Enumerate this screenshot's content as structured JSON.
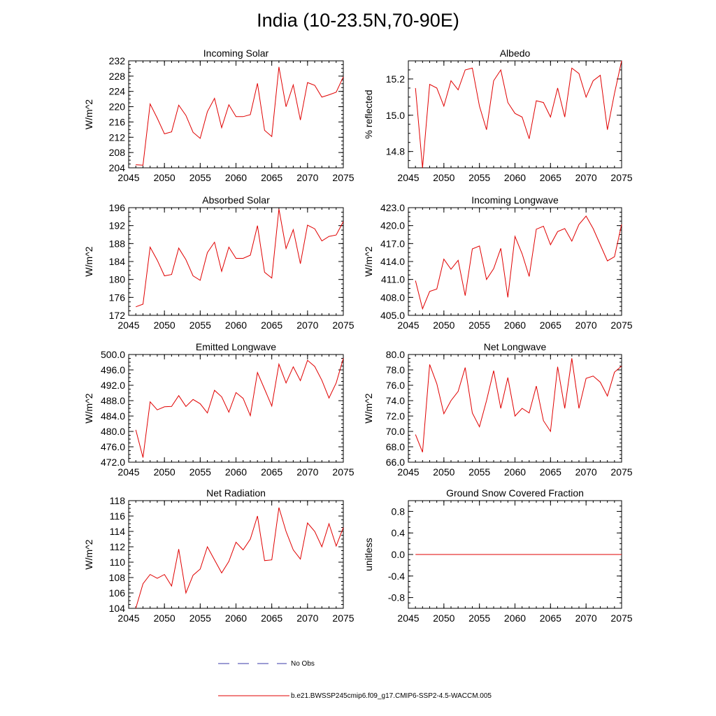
{
  "figure_title": "India (10-23.5N,70-90E)",
  "legend": {
    "obs_label": "No Obs",
    "obs_color": "#3a3aa8",
    "model_label": "b.e21.BWSSP245cmip6.f09_g17.CMIP6-SSP2-4.5-WACCM.005",
    "model_color": "#e00000"
  },
  "chart_data": [
    {
      "type": "line",
      "title": "Incoming Solar",
      "xlabel": "",
      "ylabel": "W/m^2",
      "xlim": [
        2045,
        2075
      ],
      "ylim": [
        204,
        232
      ],
      "xticks": [
        2045,
        2050,
        2055,
        2060,
        2065,
        2070,
        2075
      ],
      "xtick_labels": [
        "2045",
        "2050",
        "2055",
        "2060",
        "2065",
        "2070",
        "2075"
      ],
      "yticks": [
        204,
        208,
        212,
        216,
        220,
        224,
        228,
        232
      ],
      "ytick_labels": [
        "204",
        "208",
        "212",
        "216",
        "220",
        "224",
        "228",
        "232"
      ],
      "series": [
        {
          "name": "b.e21.BWSSP245cmip6.f09_g17.CMIP6-SSP2-4.5-WACCM.005",
          "x": [
            2046,
            2047,
            2048,
            2049,
            2050,
            2051,
            2052,
            2053,
            2054,
            2055,
            2056,
            2057,
            2058,
            2059,
            2060,
            2061,
            2062,
            2063,
            2064,
            2065,
            2066,
            2067,
            2068,
            2069,
            2070,
            2071,
            2072,
            2073,
            2074,
            2075
          ],
          "values": [
            204.8,
            204.7,
            220.7,
            217.0,
            212.9,
            213.4,
            220.4,
            217.7,
            213.3,
            211.7,
            218.7,
            222.2,
            214.5,
            220.5,
            217.4,
            217.4,
            217.9,
            226.1,
            213.8,
            212.2,
            230.4,
            220.0,
            225.7,
            216.5,
            226.3,
            225.6,
            222.5,
            223.1,
            223.8,
            227.8
          ]
        }
      ]
    },
    {
      "type": "line",
      "title": "Albedo",
      "xlabel": "",
      "ylabel": "% reflected",
      "xlim": [
        2045,
        2075
      ],
      "ylim": [
        14.71,
        15.3
      ],
      "xticks": [
        2045,
        2050,
        2055,
        2060,
        2065,
        2070,
        2075
      ],
      "xtick_labels": [
        "2045",
        "2050",
        "2055",
        "2060",
        "2065",
        "2070",
        "2075"
      ],
      "yticks": [
        14.8,
        15.0,
        15.2
      ],
      "ytick_labels": [
        "14.8",
        "15.0",
        "15.2"
      ],
      "series": [
        {
          "name": "b.e21.BWSSP245cmip6.f09_g17.CMIP6-SSP2-4.5-WACCM.005",
          "x": [
            2046,
            2047,
            2048,
            2049,
            2050,
            2051,
            2052,
            2053,
            2054,
            2055,
            2056,
            2057,
            2058,
            2059,
            2060,
            2061,
            2062,
            2063,
            2064,
            2065,
            2066,
            2067,
            2068,
            2069,
            2070,
            2071,
            2072,
            2073,
            2074,
            2075
          ],
          "values": [
            15.15,
            14.71,
            15.17,
            15.15,
            15.05,
            15.19,
            15.14,
            15.25,
            15.26,
            15.05,
            14.92,
            15.19,
            15.25,
            15.07,
            15.01,
            14.99,
            14.87,
            15.08,
            15.07,
            14.99,
            15.15,
            14.99,
            15.26,
            15.23,
            15.1,
            15.19,
            15.22,
            14.92,
            15.12,
            15.3
          ]
        }
      ]
    },
    {
      "type": "line",
      "title": "Absorbed Solar",
      "xlabel": "",
      "ylabel": "W/m^2",
      "xlim": [
        2045,
        2075
      ],
      "ylim": [
        172,
        196
      ],
      "xticks": [
        2045,
        2050,
        2055,
        2060,
        2065,
        2070,
        2075
      ],
      "xtick_labels": [
        "2045",
        "2050",
        "2055",
        "2060",
        "2065",
        "2070",
        "2075"
      ],
      "yticks": [
        172,
        176,
        180,
        184,
        188,
        192,
        196
      ],
      "ytick_labels": [
        "172",
        "176",
        "180",
        "184",
        "188",
        "192",
        "196"
      ],
      "series": [
        {
          "name": "b.e21.BWSSP245cmip6.f09_g17.CMIP6-SSP2-4.5-WACCM.005",
          "x": [
            2046,
            2047,
            2048,
            2049,
            2050,
            2051,
            2052,
            2053,
            2054,
            2055,
            2056,
            2057,
            2058,
            2059,
            2060,
            2061,
            2062,
            2063,
            2064,
            2065,
            2066,
            2067,
            2068,
            2069,
            2070,
            2071,
            2072,
            2073,
            2074,
            2075
          ],
          "values": [
            173.9,
            174.5,
            187.2,
            184.3,
            180.8,
            181.1,
            187.0,
            184.4,
            180.8,
            179.8,
            186.0,
            188.3,
            181.8,
            187.2,
            184.7,
            184.7,
            185.4,
            192.0,
            181.6,
            180.3,
            195.7,
            186.9,
            191.1,
            183.5,
            192.1,
            191.3,
            188.6,
            189.6,
            189.9,
            192.9
          ]
        }
      ]
    },
    {
      "type": "line",
      "title": "Incoming Longwave",
      "xlabel": "",
      "ylabel": "W/m^2",
      "xlim": [
        2045,
        2075
      ],
      "ylim": [
        405,
        423
      ],
      "xticks": [
        2045,
        2050,
        2055,
        2060,
        2065,
        2070,
        2075
      ],
      "xtick_labels": [
        "2045",
        "2050",
        "2055",
        "2060",
        "2065",
        "2070",
        "2075"
      ],
      "yticks": [
        405,
        408,
        411,
        414,
        417,
        420,
        423
      ],
      "ytick_labels": [
        "405.0",
        "408.0",
        "411.0",
        "414.0",
        "417.0",
        "420.0",
        "423.0"
      ],
      "series": [
        {
          "name": "b.e21.BWSSP245cmip6.f09_g17.CMIP6-SSP2-4.5-WACCM.005",
          "x": [
            2046,
            2047,
            2048,
            2049,
            2050,
            2051,
            2052,
            2053,
            2054,
            2055,
            2056,
            2057,
            2058,
            2059,
            2060,
            2061,
            2062,
            2063,
            2064,
            2065,
            2066,
            2067,
            2068,
            2069,
            2070,
            2071,
            2072,
            2073,
            2074,
            2075
          ],
          "values": [
            410.8,
            406.1,
            409.0,
            409.4,
            414.4,
            412.7,
            414.2,
            408.3,
            416.1,
            416.6,
            411.0,
            412.8,
            416.2,
            408.0,
            418.2,
            415.3,
            411.5,
            419.4,
            419.9,
            416.8,
            419.0,
            419.5,
            417.4,
            420.2,
            421.6,
            419.5,
            416.8,
            414.1,
            414.8,
            420.2
          ]
        }
      ]
    },
    {
      "type": "line",
      "title": "Emitted Longwave",
      "xlabel": "",
      "ylabel": "W/m^2",
      "xlim": [
        2045,
        2075
      ],
      "ylim": [
        472,
        500
      ],
      "xticks": [
        2045,
        2050,
        2055,
        2060,
        2065,
        2070,
        2075
      ],
      "xtick_labels": [
        "2045",
        "2050",
        "2055",
        "2060",
        "2065",
        "2070",
        "2075"
      ],
      "yticks": [
        472,
        476,
        480,
        484,
        488,
        492,
        496,
        500
      ],
      "ytick_labels": [
        "472.0",
        "476.0",
        "480.0",
        "484.0",
        "488.0",
        "492.0",
        "496.0",
        "500.0"
      ],
      "series": [
        {
          "name": "b.e21.BWSSP245cmip6.f09_g17.CMIP6-SSP2-4.5-WACCM.005",
          "x": [
            2046,
            2047,
            2048,
            2049,
            2050,
            2051,
            2052,
            2053,
            2054,
            2055,
            2056,
            2057,
            2058,
            2059,
            2060,
            2061,
            2062,
            2063,
            2064,
            2065,
            2066,
            2067,
            2068,
            2069,
            2070,
            2071,
            2072,
            2073,
            2074,
            2075
          ],
          "values": [
            480.4,
            473.2,
            487.7,
            485.6,
            486.4,
            486.5,
            489.3,
            486.5,
            488.3,
            487.2,
            484.8,
            490.7,
            489.0,
            485.0,
            490.1,
            488.6,
            484.1,
            495.3,
            491.0,
            486.6,
            497.5,
            492.6,
            496.8,
            493.2,
            498.5,
            496.9,
            493.3,
            488.7,
            492.6,
            499.0
          ]
        }
      ]
    },
    {
      "type": "line",
      "title": "Net Longwave",
      "xlabel": "",
      "ylabel": "W/m^2",
      "xlim": [
        2045,
        2075
      ],
      "ylim": [
        66,
        80
      ],
      "xticks": [
        2045,
        2050,
        2055,
        2060,
        2065,
        2070,
        2075
      ],
      "xtick_labels": [
        "2045",
        "2050",
        "2055",
        "2060",
        "2065",
        "2070",
        "2075"
      ],
      "yticks": [
        66,
        68,
        70,
        72,
        74,
        76,
        78,
        80
      ],
      "ytick_labels": [
        "66.0",
        "68.0",
        "70.0",
        "72.0",
        "74.0",
        "76.0",
        "78.0",
        "80.0"
      ],
      "series": [
        {
          "name": "b.e21.BWSSP245cmip6.f09_g17.CMIP6-SSP2-4.5-WACCM.005",
          "x": [
            2046,
            2047,
            2048,
            2049,
            2050,
            2051,
            2052,
            2053,
            2054,
            2055,
            2056,
            2057,
            2058,
            2059,
            2060,
            2061,
            2062,
            2063,
            2064,
            2065,
            2066,
            2067,
            2068,
            2069,
            2070,
            2071,
            2072,
            2073,
            2074,
            2075
          ],
          "values": [
            69.6,
            67.3,
            78.7,
            76.2,
            72.3,
            74.0,
            75.2,
            78.3,
            72.4,
            70.6,
            74.0,
            77.9,
            73.0,
            77.0,
            72.0,
            73.0,
            72.4,
            75.9,
            71.4,
            70.0,
            78.4,
            73.0,
            79.5,
            73.0,
            76.9,
            77.2,
            76.4,
            74.6,
            77.7,
            78.5
          ]
        }
      ]
    },
    {
      "type": "line",
      "title": "Net Radiation",
      "xlabel": "",
      "ylabel": "W/m^2",
      "xlim": [
        2045,
        2075
      ],
      "ylim": [
        104,
        118
      ],
      "xticks": [
        2045,
        2050,
        2055,
        2060,
        2065,
        2070,
        2075
      ],
      "xtick_labels": [
        "2045",
        "2050",
        "2055",
        "2060",
        "2065",
        "2070",
        "2075"
      ],
      "yticks": [
        104,
        106,
        108,
        110,
        112,
        114,
        116,
        118
      ],
      "ytick_labels": [
        "104",
        "106",
        "108",
        "110",
        "112",
        "114",
        "116",
        "118"
      ],
      "series": [
        {
          "name": "b.e21.BWSSP245cmip6.f09_g17.CMIP6-SSP2-4.5-WACCM.005",
          "x": [
            2046,
            2047,
            2048,
            2049,
            2050,
            2051,
            2052,
            2053,
            2054,
            2055,
            2056,
            2057,
            2058,
            2059,
            2060,
            2061,
            2062,
            2063,
            2064,
            2065,
            2066,
            2067,
            2068,
            2069,
            2070,
            2071,
            2072,
            2073,
            2074,
            2075
          ],
          "values": [
            104.0,
            107.2,
            108.4,
            107.9,
            108.4,
            106.9,
            111.7,
            106.0,
            108.3,
            109.1,
            112.0,
            110.3,
            108.6,
            110.1,
            112.6,
            111.6,
            113.0,
            116.0,
            110.2,
            110.3,
            117.1,
            114.0,
            111.6,
            110.4,
            115.1,
            114.0,
            112.0,
            115.0,
            112.1,
            114.5
          ]
        }
      ]
    },
    {
      "type": "line",
      "title": "Ground Snow Covered Fraction",
      "xlabel": "",
      "ylabel": "unitless",
      "xlim": [
        2045,
        2075
      ],
      "ylim": [
        -1.0,
        1.0
      ],
      "xticks": [
        2045,
        2050,
        2055,
        2060,
        2065,
        2070,
        2075
      ],
      "xtick_labels": [
        "2045",
        "2050",
        "2055",
        "2060",
        "2065",
        "2070",
        "2075"
      ],
      "yticks": [
        -0.8,
        -0.4,
        0.0,
        0.4,
        0.8
      ],
      "ytick_labels": [
        "-0.8",
        "-0.4",
        "0.0",
        "0.4",
        "0.8"
      ],
      "series": [
        {
          "name": "b.e21.BWSSP245cmip6.f09_g17.CMIP6-SSP2-4.5-WACCM.005",
          "x": [
            2046,
            2075
          ],
          "values": [
            0.0,
            0.0
          ]
        }
      ]
    }
  ]
}
